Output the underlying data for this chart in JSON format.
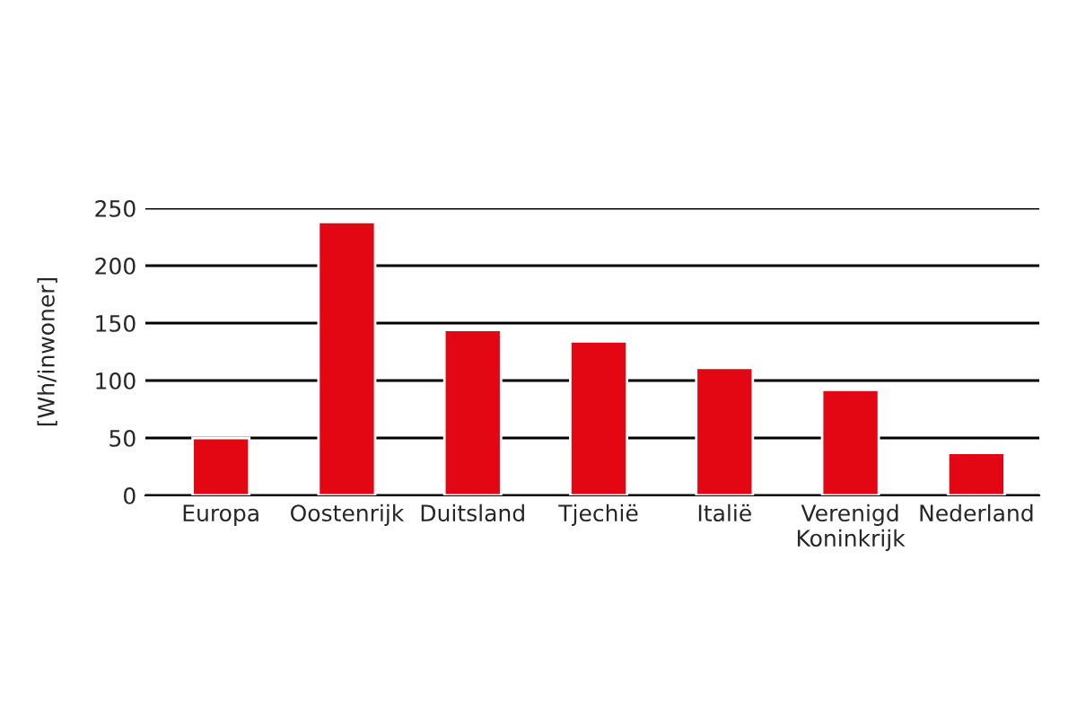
{
  "chart_data": {
    "type": "bar",
    "ylabel": "[Wh/inwoner]",
    "categories": [
      "Europa",
      "Oostenrijk",
      "Duitsland",
      "Tjechië",
      "Italië",
      "Verenigd\nKoninkrijk",
      "Nederland"
    ],
    "values": [
      50,
      238,
      144,
      134,
      111,
      92,
      37
    ],
    "color": "#e30613",
    "ylim": [
      0,
      250
    ],
    "yticks": [
      0,
      50,
      100,
      150,
      200,
      250
    ],
    "grid": "y"
  }
}
